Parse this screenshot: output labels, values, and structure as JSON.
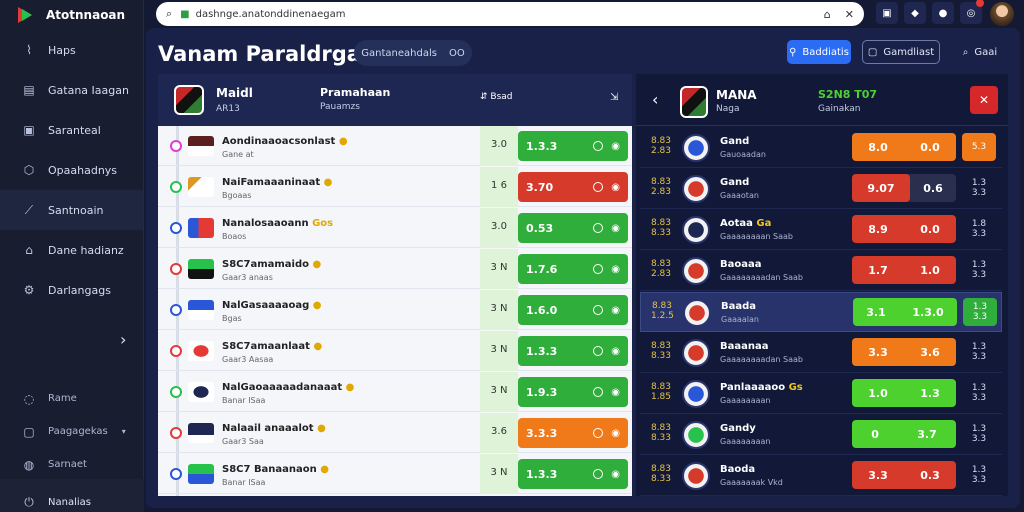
{
  "app": {
    "brand": "Atotnnaoan"
  },
  "sidebar": {
    "items": [
      {
        "label": "Haps",
        "icon": "chart-icon"
      },
      {
        "label": "Gatana Iaagan",
        "icon": "document-icon"
      },
      {
        "label": "Saranteal",
        "icon": "calendar-icon"
      },
      {
        "label": "Opaahadnys",
        "icon": "shield-icon"
      },
      {
        "label": "Santnoain",
        "icon": "trend-icon"
      },
      {
        "label": "Dane hadianz",
        "icon": "user-icon"
      },
      {
        "label": "Darlangags",
        "icon": "settings-icon"
      }
    ],
    "bottom_items": [
      {
        "label": "Rame",
        "icon": "help-icon"
      },
      {
        "label": "Paagagekas",
        "icon": "package-icon"
      },
      {
        "label": "Sarnaet",
        "icon": "info-icon"
      },
      {
        "label": "Nanalias",
        "icon": "power-icon"
      }
    ]
  },
  "browser": {
    "url": "dashnge.anatonddinenaegam"
  },
  "header": {
    "title": "Vanam Paraldrgaloo",
    "subtag": "Gantaneahdals",
    "subtag_value": "OO",
    "btn_primary": "Baddiatis",
    "btn_secondary": "Gamdliast",
    "btn_search": "Gaai"
  },
  "left_panel": {
    "header": {
      "team": "Maidl",
      "team_sub": "AR13",
      "col2": "Pramahaan",
      "col2_sub": "Pauamzs",
      "col3": "Bsad"
    },
    "rows": [
      {
        "name": "Aondinaaoacsonlast",
        "sub": "Gane at",
        "num": "3.0",
        "odd": "1.3.3",
        "color": "green",
        "rail_dot": "#e53ad6",
        "flag": "linear-gradient(#5a1f1f 50%,#fff 50%)"
      },
      {
        "name": "NaiFamaaaninaat",
        "sub": "Bgoaas",
        "num": "1 6",
        "odd": "3.70",
        "color": "red",
        "rail_dot": "#27c24c",
        "flag": "linear-gradient(135deg,#d92 30%,#fff 30%)"
      },
      {
        "name": "Nanalosaaoann",
        "tag": "Gos",
        "sub": "Boaos",
        "num": "3.0",
        "odd": "0.53",
        "color": "green",
        "rail_dot": "#2a56d8",
        "flag": "linear-gradient(90deg,#2a56d8 40%,#e53935 40%)"
      },
      {
        "name": "S8C7amamaido",
        "sub": "Gaar3 anaas",
        "num": "3 N",
        "odd": "1.7.6",
        "color": "green",
        "rail_dot": "#e53935",
        "flag": "linear-gradient(#27c24c 50%,#111 50%)"
      },
      {
        "name": "NalGasaaaaoag",
        "sub": "Bgas",
        "num": "3 N",
        "odd": "1.6.0",
        "color": "green",
        "rail_dot": "#2a56d8",
        "flag": "linear-gradient(#2a56d8 50%,#fff 50%)"
      },
      {
        "name": "S8C7amaanlaat",
        "sub": "Gaar3 Aasaa",
        "num": "3 N",
        "odd": "1.3.3",
        "color": "green",
        "rail_dot": "#e53935",
        "flag": "radial-gradient(#e53935 40%,#fff 42%)"
      },
      {
        "name": "NalGaoaaaaadanaaat",
        "sub": "Banar ISaa",
        "num": "3 N",
        "odd": "1.9.3",
        "color": "green",
        "rail_dot": "#27c24c",
        "flag": "radial-gradient(#1e2752 40%,#fff 42%)"
      },
      {
        "name": "Nalaail anaaalot",
        "sub": "Gaar3 Saa",
        "num": "3.6",
        "odd": "3.3.3",
        "color": "orange",
        "rail_dot": "#e53935",
        "flag": "linear-gradient(#1e2752 60%,#fff 60%)"
      },
      {
        "name": "S8C7 Banaanaon",
        "sub": "Banar ISaa",
        "num": "3 N",
        "odd": "1.3.3",
        "color": "green",
        "rail_dot": "#2a56d8",
        "flag": "linear-gradient(#27c24c 50%,#2a56d8 50%)"
      }
    ]
  },
  "right_panel": {
    "header": {
      "team": "MANA",
      "team_sub": "Naga",
      "col2": "S2N8 T07",
      "col2_sub": "Gainakan"
    },
    "rows": [
      {
        "t1": "8.83",
        "t2": "2.83",
        "name": "Gand",
        "sub": "Gauoaadan",
        "o1": "8.0",
        "o2": "0.0",
        "ex": "5.3",
        "color": "orange",
        "ex_style": "orange",
        "badge": "#2a56d8"
      },
      {
        "t1": "8.83",
        "t2": "2.83",
        "name": "Gand",
        "sub": "Gaaaotan",
        "o1": "9.07",
        "o2": "0.6",
        "ex": "1.3\n3.3",
        "color": "red",
        "split": true,
        "ex_style": "dark",
        "badge": "#d63a2a"
      },
      {
        "t1": "8.83",
        "t2": "8.33",
        "name": "Aotaa",
        "tag": "Ga",
        "sub": "Gaaaaaaaan Saab",
        "o1": "8.9",
        "o2": "0.0",
        "ex": "1.8\n3.3",
        "color": "red",
        "ex_style": "dark",
        "badge": "#1e2752"
      },
      {
        "t1": "8.83",
        "t2": "2.83",
        "name": "Baoaaa",
        "sub": "Gaaaaaaaadan Saab",
        "o1": "1.7",
        "o2": "1.0",
        "ex": "1.3\n3.3",
        "color": "red",
        "ex_style": "dark",
        "badge": "#d63a2a"
      },
      {
        "t1": "8.83",
        "t2": "1.2.5",
        "name": "Baada",
        "sub": "Gaaaalan",
        "o1": "3.1",
        "o2": "1.3.0",
        "ex": "1.3\n3.3",
        "color": "lime",
        "ex_style": "lime",
        "badge": "#d63a2a",
        "hl": true
      },
      {
        "t1": "8.83",
        "t2": "8.33",
        "name": "Baaanaa",
        "sub": "Gaaaaaaaadan Saab",
        "o1": "3.3",
        "o2": "3.6",
        "ex": "1.3\n3.3",
        "color": "orange",
        "ex_style": "dark",
        "badge": "#d63a2a"
      },
      {
        "t1": "8.83",
        "t2": "1.85",
        "name": "Panlaaaaoo",
        "tag": "Gs",
        "sub": "Gaaaaaaaan",
        "o1": "1.0",
        "o2": "1.3",
        "ex": "1.3\n3.3",
        "color": "lime",
        "ex_style": "dark",
        "badge": "#2a56d8"
      },
      {
        "t1": "8.83",
        "t2": "8.33",
        "name": "Gandy",
        "sub": "Gaaaaaaaan",
        "o1": "0",
        "o2": "3.7",
        "ex": "1.3\n3.3",
        "color": "lime",
        "ex_style": "dark",
        "badge": "#27c24c"
      },
      {
        "t1": "8.83",
        "t2": "8.33",
        "name": "Baoda",
        "sub": "Gaaaaaaak Vkd",
        "o1": "3.3",
        "o2": "0.3",
        "ex": "1.3\n3.3",
        "color": "red",
        "ex_style": "dark",
        "badge": "#d63a2a"
      }
    ]
  }
}
